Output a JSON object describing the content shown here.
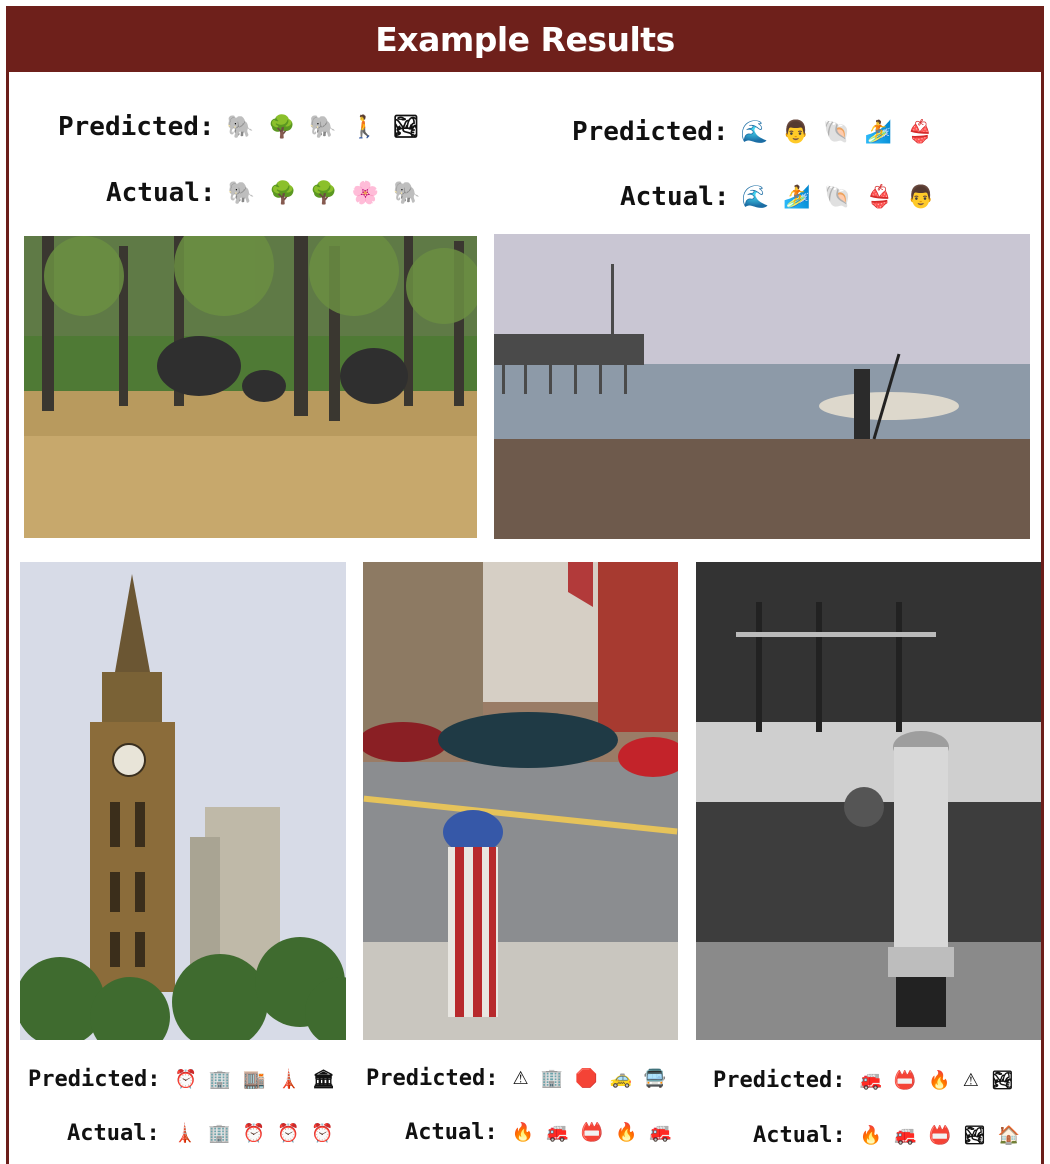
{
  "title": "Example Results",
  "labels": {
    "predicted": "Predicted:",
    "actual": "Actual:"
  },
  "examples": [
    {
      "predicted": [
        "🐘",
        "🌳",
        "🐘",
        "🚶",
        "🏞"
      ],
      "actual": [
        "🐘",
        "🌳",
        "🌳",
        "🌸",
        "🐘"
      ]
    },
    {
      "predicted": [
        "🌊",
        "👨",
        "🐚",
        "🏄",
        "👙"
      ],
      "actual": [
        "🌊",
        "🏄",
        "🐚",
        "👙",
        "👨"
      ]
    },
    {
      "predicted": [
        "⏰",
        "🏢",
        "🏬",
        "🗼",
        "🏛"
      ],
      "actual": [
        "🗼",
        "🏢",
        "⏰",
        "⏰",
        "⏰"
      ]
    },
    {
      "predicted": [
        "⚠",
        "🏢",
        "🛑",
        "🚕",
        "🚍"
      ],
      "actual": [
        "🔥",
        "🚒",
        "📛",
        "🔥",
        "🚒"
      ]
    },
    {
      "predicted": [
        "🚒",
        "📛",
        "🔥",
        "⚠",
        "🏞"
      ],
      "actual": [
        "🔥",
        "🚒",
        "📛",
        "🏞",
        "🏠"
      ]
    }
  ]
}
